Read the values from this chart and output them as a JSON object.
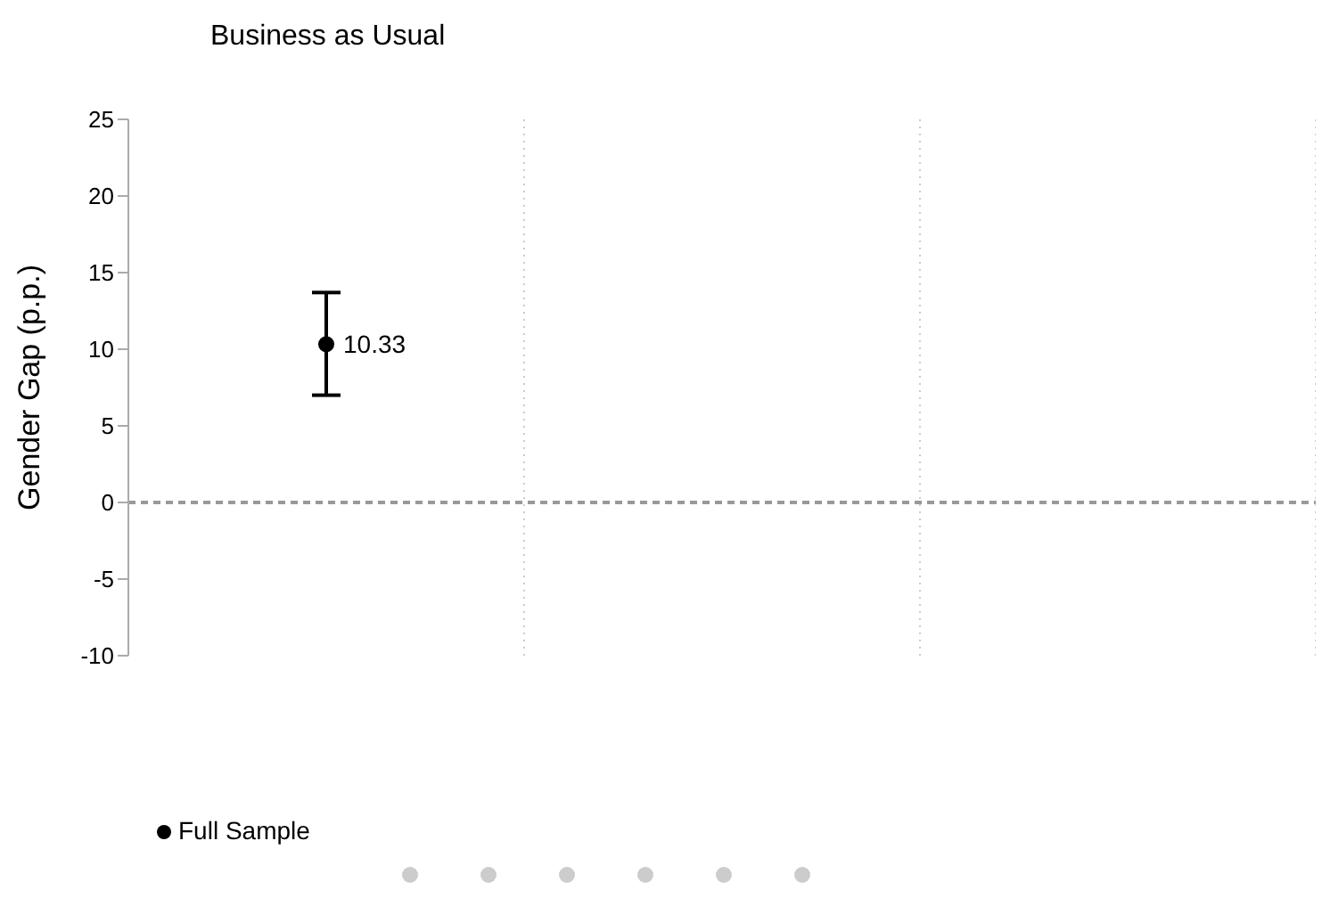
{
  "chart_data": {
    "type": "scatter",
    "title": "Business as Usual",
    "ylabel": "Gender Gap (p.p.)",
    "categories": [
      null,
      null,
      null
    ],
    "series": [
      {
        "name": "Full Sample",
        "color": "#000000",
        "values": [
          10.33,
          null,
          null
        ],
        "errors": [
          [
            7.0,
            13.7
          ],
          null,
          null
        ]
      }
    ],
    "ylim": [
      -10,
      25
    ],
    "yticks": [
      -10,
      -5,
      0,
      5,
      10,
      15,
      20,
      25
    ],
    "ref_lines": [
      {
        "axis": "y",
        "value": 0,
        "color": "#999999",
        "line_style": "dashed"
      }
    ],
    "grid": "x",
    "legend": "bottom left",
    "data_labels": true,
    "marker": "circle"
  }
}
